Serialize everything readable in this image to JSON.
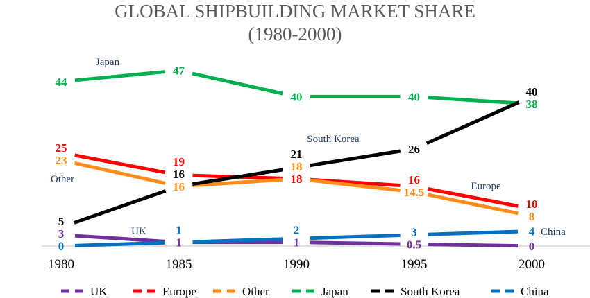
{
  "chart_data": {
    "type": "line",
    "title": "GLOBAL SHIPBUILDING MARKET SHARE",
    "subtitle": "(1980-2000)",
    "xlabel": "",
    "ylabel": "",
    "categories": [
      "1980",
      "1985",
      "1990",
      "1995",
      "2000"
    ],
    "ylim": [
      0,
      50
    ],
    "grid": false,
    "legend": "bottom",
    "series": [
      {
        "name": "UK",
        "color": "#7030a0",
        "values": [
          3,
          1,
          1,
          0.5,
          0
        ]
      },
      {
        "name": "Europe",
        "color": "#ff0000",
        "values": [
          25,
          19,
          18,
          16,
          10
        ]
      },
      {
        "name": "Other",
        "color": "#ff8c1a",
        "values": [
          23,
          16,
          18,
          14.5,
          8
        ]
      },
      {
        "name": "Japan",
        "color": "#00b050",
        "values": [
          44,
          47,
          40,
          40,
          38
        ]
      },
      {
        "name": "South Korea",
        "color": "#000000",
        "values": [
          5,
          16,
          21,
          26,
          40
        ]
      },
      {
        "name": "China",
        "color": "#0070c0",
        "values": [
          0,
          1,
          2,
          3,
          4
        ]
      }
    ],
    "annotations": [
      {
        "text": "Japan",
        "series": "Japan"
      },
      {
        "text": "Other",
        "series": "Other"
      },
      {
        "text": "UK",
        "series": "UK"
      },
      {
        "text": "South Korea",
        "series": "South Korea"
      },
      {
        "text": "Europe",
        "series": "Europe"
      },
      {
        "text": "China",
        "series": "China"
      }
    ]
  }
}
